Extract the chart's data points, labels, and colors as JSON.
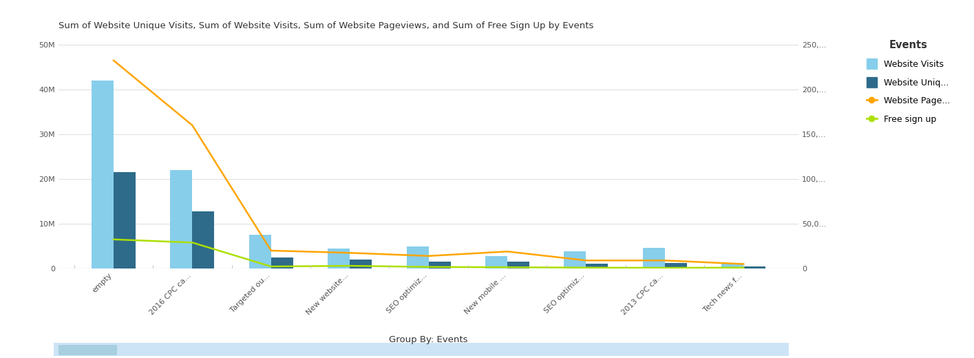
{
  "title": "Sum of Website Unique Visits, Sum of Website Visits, Sum of Website Pageviews, and Sum of Free Sign Up by Events",
  "xlabel_bottom": "Group By: Events",
  "categories": [
    "empty",
    "2016 CPC ca...",
    "Targeted ou...",
    "New website...",
    "SEO optimiz...",
    "New mobile ...",
    "SEO optimiz...",
    "2013 CPC ca...",
    "Tech news f..."
  ],
  "website_visits": [
    42000000,
    22000000,
    7500000,
    4500000,
    5000000,
    2800000,
    3800000,
    4600000,
    1200000
  ],
  "website_unique": [
    21500000,
    12800000,
    2500000,
    2000000,
    1600000,
    1500000,
    1100000,
    1200000,
    500000
  ],
  "website_pageviews": [
    46500000,
    32000000,
    4000000,
    3500000,
    2800000,
    3800000,
    1800000,
    1800000,
    1000000
  ],
  "free_signup": [
    6500000,
    5800000,
    450000,
    600000,
    350000,
    280000,
    200000,
    150000,
    200000
  ],
  "bar_color_visits": "#87CEEB",
  "bar_color_unique": "#2E6B8A",
  "line_color_pageviews": "#FFA500",
  "line_color_signup": "#ADDF00",
  "left_ylim": [
    0,
    52000000
  ],
  "right_ylim": [
    0,
    260000
  ],
  "left_yticks": [
    0,
    10000000,
    20000000,
    30000000,
    40000000,
    50000000
  ],
  "left_yticklabels": [
    "0",
    "10M",
    "20M",
    "30M",
    "40M",
    "50M"
  ],
  "right_yticks": [
    0,
    50000,
    100000,
    150000,
    200000,
    250000
  ],
  "right_yticklabels": [
    "0",
    "50,0...",
    "100,...",
    "150,...",
    "200,...",
    "250,..."
  ],
  "legend_title": "Events",
  "legend_items": [
    "Website Visits",
    "Website Uniq...",
    "Website Page...",
    "Free sign up"
  ],
  "bg_color": "#ffffff",
  "grid_color": "#e0e0e0",
  "title_fontsize": 9.5,
  "axis_fontsize": 9,
  "tick_fontsize": 8,
  "footer_bar_color": "#cce4f5"
}
